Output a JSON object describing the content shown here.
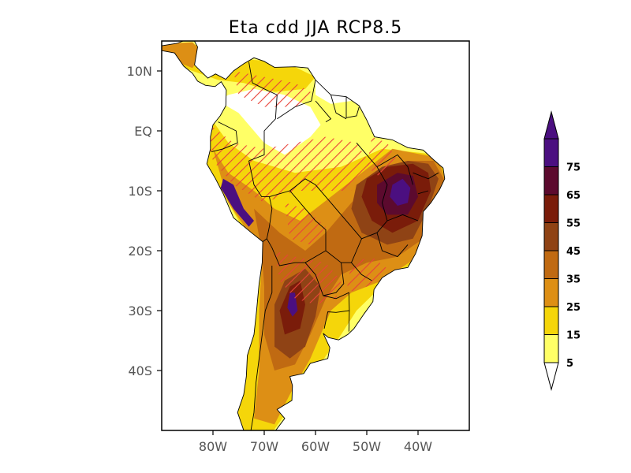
{
  "title": "Eta  cdd JJA RCP8.5",
  "map": {
    "lon_range": [
      -90,
      -30
    ],
    "lat_range": [
      -50,
      15
    ],
    "y_ticks": [
      {
        "lat": 10,
        "label": "10N"
      },
      {
        "lat": 0,
        "label": "EQ"
      },
      {
        "lat": -10,
        "label": "10S"
      },
      {
        "lat": -20,
        "label": "20S"
      },
      {
        "lat": -30,
        "label": "30S"
      },
      {
        "lat": -40,
        "label": "40S"
      }
    ],
    "x_ticks": [
      {
        "lon": -80,
        "label": "80W"
      },
      {
        "lon": -70,
        "label": "70W"
      },
      {
        "lon": -60,
        "label": "60W"
      },
      {
        "lon": -50,
        "label": "50W"
      },
      {
        "lon": -40,
        "label": "40W"
      }
    ]
  },
  "colorbar": {
    "levels": [
      "5",
      "15",
      "25",
      "35",
      "45",
      "55",
      "65",
      "75"
    ],
    "colors": [
      "#ffff66",
      "#f5d60a",
      "#dd8f15",
      "#c06a12",
      "#8f4315",
      "#7a1c0a",
      "#5c0a2e",
      "#4b0f80"
    ],
    "under_color": "#ffffff",
    "over_color": "#4b0f80"
  },
  "hatch_color": "#e8433a"
}
